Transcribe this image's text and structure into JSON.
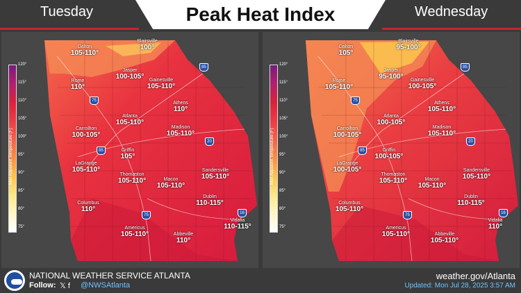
{
  "header": {
    "title": "Peak Heat Index",
    "day_left": "Tuesday",
    "day_right": "Wednesday"
  },
  "legend": {
    "title": "Max Apparent Temperature (F)",
    "ticks": [
      "120°",
      "115°",
      "110°",
      "105°",
      "100°",
      "95°",
      "90°",
      "85°",
      "80°",
      "75°"
    ],
    "colors": [
      "#7a1a7e",
      "#b02070",
      "#d9213b",
      "#ea3b45",
      "#f2604a",
      "#f79048",
      "#fcc44e",
      "#fde88a",
      "#fff6c8",
      "#ffffff"
    ]
  },
  "tuesday": {
    "cities": [
      {
        "name": "Dalton",
        "value": "105-110°"
      },
      {
        "name": "Blairsville",
        "value": "100°"
      },
      {
        "name": "Jasper",
        "value": "100-105°"
      },
      {
        "name": "Rome",
        "value": "110°"
      },
      {
        "name": "Gainesville",
        "value": "105-110°"
      },
      {
        "name": "Athens",
        "value": "110°"
      },
      {
        "name": "Atlanta",
        "value": "105-110°"
      },
      {
        "name": "Carrollton",
        "value": "100-105°"
      },
      {
        "name": "Madison",
        "value": "105-110°"
      },
      {
        "name": "Griffin",
        "value": "105°"
      },
      {
        "name": "LaGrange",
        "value": "105-110°"
      },
      {
        "name": "Thomaston",
        "value": "105-110°"
      },
      {
        "name": "Macon",
        "value": "105-110°"
      },
      {
        "name": "Sandersville",
        "value": "105-110°"
      },
      {
        "name": "Dublin",
        "value": "110-115°"
      },
      {
        "name": "Columbus",
        "value": "110°"
      },
      {
        "name": "Americus",
        "value": "105-110°"
      },
      {
        "name": "Abbeville",
        "value": "110°"
      },
      {
        "name": "Vidalia",
        "value": "110-115°"
      }
    ]
  },
  "wednesday": {
    "cities": [
      {
        "name": "Dalton",
        "value": "105°"
      },
      {
        "name": "Blairsville",
        "value": "95-100°"
      },
      {
        "name": "Jasper",
        "value": "95-100°"
      },
      {
        "name": "Rome",
        "value": "105-110°"
      },
      {
        "name": "Gainesville",
        "value": "100-105°"
      },
      {
        "name": "Athens",
        "value": "105-110°"
      },
      {
        "name": "Atlanta",
        "value": "100-105°"
      },
      {
        "name": "Carrollton",
        "value": "100-105°"
      },
      {
        "name": "Madison",
        "value": "105-110°"
      },
      {
        "name": "Griffin",
        "value": "100-105°"
      },
      {
        "name": "LaGrange",
        "value": "100-105°"
      },
      {
        "name": "Thomaston",
        "value": "105-110°"
      },
      {
        "name": "Macon",
        "value": "105-110°"
      },
      {
        "name": "Sandersville",
        "value": "105-110°"
      },
      {
        "name": "Dublin",
        "value": "110-115°"
      },
      {
        "name": "Columbus",
        "value": "105-110°"
      },
      {
        "name": "Americus",
        "value": "105-110°"
      },
      {
        "name": "Abbeville",
        "value": "105-110°"
      },
      {
        "name": "Vidalia",
        "value": "110°"
      }
    ]
  },
  "interstates": [
    "75",
    "85",
    "20",
    "16",
    "75",
    "85"
  ],
  "footer": {
    "agency": "NATIONAL WEATHER SERVICE ATLANTA",
    "follow": "Follow:",
    "social_icons": "𝕏 f",
    "handle": "@NWSAtlanta",
    "url": "weather.gov/Atlanta",
    "updated": "Updated: Mon Jul 28, 2025 3:57 AM"
  },
  "colors": {
    "accent_red": "#d0202e",
    "footer_blue": "#6cc5ff"
  }
}
